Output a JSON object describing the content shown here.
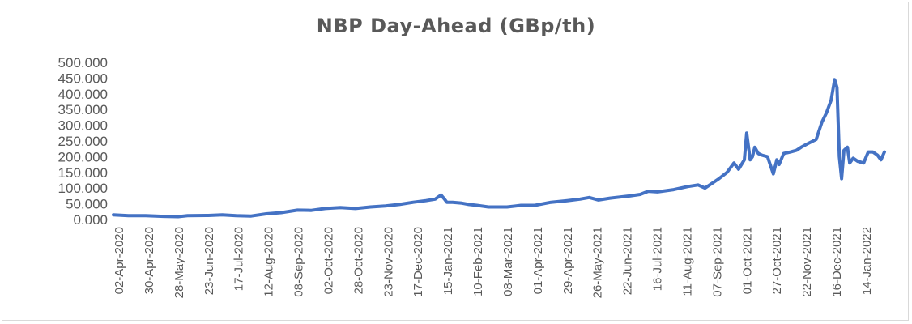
{
  "chart_data": {
    "type": "line",
    "title": "NBP Day-Ahead (GBp/th)",
    "xlabel": "",
    "ylabel": "",
    "ylim": [
      0,
      500
    ],
    "y_ticks": [
      "0.000",
      "50.000",
      "100.000",
      "150.000",
      "200.000",
      "250.000",
      "300.000",
      "350.000",
      "400.000",
      "450.000",
      "500.000"
    ],
    "x_ticks": [
      "02-Apr-2020",
      "30-Apr-2020",
      "28-May-2020",
      "23-Jun-2020",
      "17-Jul-2020",
      "12-Aug-2020",
      "08-Sep-2020",
      "02-Oct-2020",
      "28-Oct-2020",
      "23-Nov-2020",
      "17-Dec-2020",
      "15-Jan-2021",
      "10-Feb-2021",
      "08-Mar-2021",
      "01-Apr-2021",
      "29-Apr-2021",
      "26-May-2021",
      "22-Jun-2021",
      "16-Jul-2021",
      "11-Aug-2021",
      "07-Sep-2021",
      "01-Oct-2021",
      "27-Oct-2021",
      "22-Nov-2021",
      "16-Dec-2021",
      "14-Jan-2022"
    ],
    "grid": false,
    "legend": "none",
    "color": "#4472C4",
    "series": [
      {
        "x": [
          "2020-04-02",
          "2020-04-15",
          "2020-04-30",
          "2020-05-15",
          "2020-05-28",
          "2020-06-05",
          "2020-06-23",
          "2020-07-05",
          "2020-07-17",
          "2020-07-30",
          "2020-08-12",
          "2020-08-25",
          "2020-09-08",
          "2020-09-20",
          "2020-10-02",
          "2020-10-15",
          "2020-10-28",
          "2020-11-10",
          "2020-11-23",
          "2020-12-05",
          "2020-12-17",
          "2020-12-28",
          "2021-01-05",
          "2021-01-10",
          "2021-01-13",
          "2021-01-15",
          "2021-01-20",
          "2021-01-28",
          "2021-02-03",
          "2021-02-10",
          "2021-02-20",
          "2021-03-08",
          "2021-03-20",
          "2021-04-01",
          "2021-04-15",
          "2021-04-29",
          "2021-05-10",
          "2021-05-18",
          "2021-05-26",
          "2021-06-05",
          "2021-06-22",
          "2021-07-01",
          "2021-07-08",
          "2021-07-16",
          "2021-07-30",
          "2021-08-11",
          "2021-08-20",
          "2021-08-26",
          "2021-09-07",
          "2021-09-14",
          "2021-09-20",
          "2021-09-24",
          "2021-09-29",
          "2021-10-01",
          "2021-10-04",
          "2021-10-06",
          "2021-10-08",
          "2021-10-11",
          "2021-10-14",
          "2021-10-19",
          "2021-10-24",
          "2021-10-27",
          "2021-10-29",
          "2021-11-02",
          "2021-11-08",
          "2021-11-13",
          "2021-11-17",
          "2021-11-22",
          "2021-11-30",
          "2021-12-05",
          "2021-12-09",
          "2021-12-13",
          "2021-12-16",
          "2021-12-18",
          "2021-12-20",
          "2021-12-22",
          "2021-12-24",
          "2021-12-27",
          "2021-12-29",
          "2022-01-01",
          "2022-01-05",
          "2022-01-10",
          "2022-01-14",
          "2022-01-18",
          "2022-01-22",
          "2022-01-25",
          "2022-01-28"
        ],
        "values": [
          15,
          12,
          12,
          10,
          9,
          12,
          13,
          15,
          12,
          11,
          18,
          22,
          30,
          29,
          35,
          38,
          35,
          40,
          43,
          48,
          55,
          60,
          65,
          78,
          65,
          55,
          55,
          52,
          48,
          45,
          40,
          40,
          45,
          45,
          55,
          60,
          65,
          70,
          62,
          68,
          75,
          80,
          90,
          88,
          95,
          105,
          110,
          100,
          130,
          150,
          180,
          160,
          190,
          275,
          190,
          200,
          230,
          210,
          205,
          200,
          145,
          190,
          175,
          210,
          215,
          220,
          230,
          240,
          255,
          310,
          340,
          380,
          445,
          420,
          200,
          130,
          220,
          230,
          180,
          195,
          185,
          180,
          215,
          215,
          205,
          190,
          215
        ]
      }
    ]
  }
}
